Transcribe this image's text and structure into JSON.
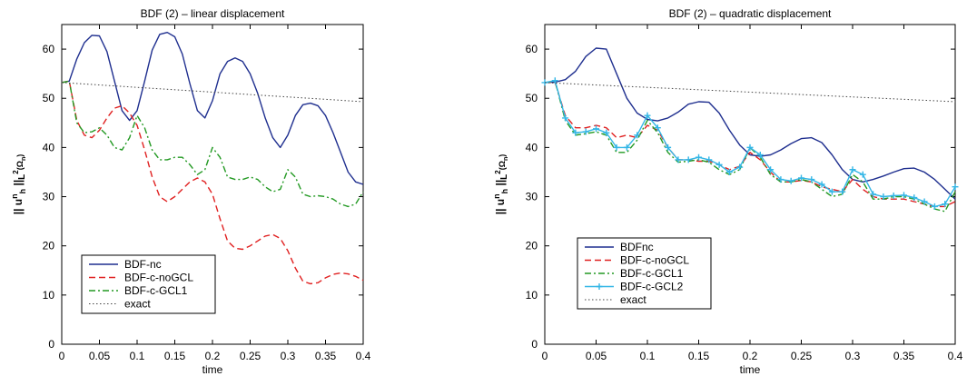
{
  "chart_data": [
    {
      "type": "line",
      "title": "BDF (2)  –  linear displacement",
      "xlabel": "time",
      "ylabel": "|| u_h^n ||_L^2(Ω_n)",
      "xlim": [
        0,
        0.4
      ],
      "ylim": [
        0,
        65
      ],
      "xticks": [
        "0",
        "0.05",
        "0.1",
        "0.15",
        "0.2",
        "0.25",
        "0.3",
        "0.35",
        "0.4"
      ],
      "yticks": [
        "0",
        "10",
        "20",
        "30",
        "40",
        "50",
        "60"
      ],
      "grid": false,
      "legend_position": "bottom-left",
      "series": [
        {
          "name": "BDF-nc",
          "color": "#1f2f8f",
          "dash": "solid",
          "x": [
            0,
            0.01,
            0.02,
            0.03,
            0.04,
            0.05,
            0.06,
            0.07,
            0.08,
            0.09,
            0.1,
            0.11,
            0.12,
            0.13,
            0.14,
            0.15,
            0.16,
            0.17,
            0.18,
            0.19,
            0.2,
            0.21,
            0.22,
            0.23,
            0.24,
            0.25,
            0.26,
            0.27,
            0.28,
            0.29,
            0.3,
            0.31,
            0.32,
            0.33,
            0.34,
            0.35,
            0.36,
            0.37,
            0.38,
            0.39,
            0.4
          ],
          "y": [
            53.2,
            53.5,
            58,
            61.3,
            62.8,
            62.7,
            59.5,
            53.5,
            47.5,
            45.5,
            47.5,
            53.5,
            59.8,
            63,
            63.4,
            62.5,
            59,
            53,
            47.5,
            46,
            49.5,
            55,
            57.5,
            58.2,
            57.5,
            55,
            51,
            46,
            42,
            40,
            42.5,
            46.5,
            48.7,
            49,
            48.5,
            46.5,
            43,
            39,
            35,
            33,
            32.5
          ]
        },
        {
          "name": "BDF-c-noGCL",
          "color": "#e02020",
          "dash": "dashed",
          "x": [
            0,
            0.01,
            0.02,
            0.03,
            0.04,
            0.05,
            0.06,
            0.07,
            0.08,
            0.09,
            0.1,
            0.11,
            0.12,
            0.13,
            0.14,
            0.15,
            0.16,
            0.17,
            0.18,
            0.19,
            0.2,
            0.21,
            0.22,
            0.23,
            0.24,
            0.25,
            0.26,
            0.27,
            0.28,
            0.29,
            0.3,
            0.31,
            0.32,
            0.33,
            0.34,
            0.35,
            0.36,
            0.37,
            0.38,
            0.39,
            0.4
          ],
          "y": [
            53.2,
            53.5,
            45.5,
            42.5,
            42,
            43.5,
            46,
            48,
            48.5,
            47,
            44.5,
            39.5,
            34,
            30,
            29,
            30,
            31.5,
            33,
            33.8,
            33,
            30.5,
            25.5,
            21,
            19.5,
            19.3,
            20,
            21,
            22,
            22.3,
            21.5,
            19,
            15.5,
            12.8,
            12.3,
            12.5,
            13.5,
            14.2,
            14.5,
            14.3,
            13.8,
            13
          ]
        },
        {
          "name": "BDF-c-GCL1",
          "color": "#229922",
          "dash": "dashdot",
          "x": [
            0,
            0.01,
            0.02,
            0.03,
            0.04,
            0.05,
            0.06,
            0.07,
            0.08,
            0.09,
            0.1,
            0.11,
            0.12,
            0.13,
            0.14,
            0.15,
            0.16,
            0.17,
            0.18,
            0.19,
            0.2,
            0.21,
            0.22,
            0.23,
            0.24,
            0.25,
            0.26,
            0.27,
            0.28,
            0.29,
            0.3,
            0.31,
            0.32,
            0.33,
            0.34,
            0.35,
            0.36,
            0.37,
            0.38,
            0.39,
            0.4
          ],
          "y": [
            53.2,
            53.5,
            45,
            43,
            43.2,
            44,
            42.5,
            40,
            39.5,
            42,
            46.5,
            44,
            39.5,
            37.5,
            37.5,
            38,
            38,
            36.5,
            34.5,
            35.5,
            40,
            38,
            34,
            33.5,
            33.5,
            34,
            33.5,
            32,
            31,
            31.5,
            35.5,
            34,
            30.5,
            30,
            30.2,
            30,
            29.5,
            28.5,
            28,
            28.5,
            31
          ]
        },
        {
          "name": "exact",
          "color": "#444444",
          "dash": "dotted",
          "x": [
            0,
            0.4
          ],
          "y": [
            53.2,
            49.3
          ]
        }
      ]
    },
    {
      "type": "line",
      "title": "BDF (2)  –  quadratic displacement",
      "xlabel": "time",
      "ylabel": "|| u_h^n ||_L^2(Ω_n)",
      "xlim": [
        0,
        0.4
      ],
      "ylim": [
        0,
        65
      ],
      "xticks": [
        "0",
        "0.05",
        "0.1",
        "0.15",
        "0.2",
        "0.25",
        "0.3",
        "0.35",
        "0.4"
      ],
      "yticks": [
        "0",
        "10",
        "20",
        "30",
        "40",
        "50",
        "60"
      ],
      "grid": false,
      "legend_position": "bottom-left",
      "series": [
        {
          "name": "BDFnc",
          "color": "#1f2f8f",
          "dash": "solid",
          "x": [
            0,
            0.01,
            0.02,
            0.03,
            0.04,
            0.05,
            0.06,
            0.07,
            0.08,
            0.09,
            0.1,
            0.11,
            0.12,
            0.13,
            0.14,
            0.15,
            0.16,
            0.17,
            0.18,
            0.19,
            0.2,
            0.21,
            0.22,
            0.23,
            0.24,
            0.25,
            0.26,
            0.27,
            0.28,
            0.29,
            0.3,
            0.31,
            0.32,
            0.33,
            0.34,
            0.35,
            0.36,
            0.37,
            0.38,
            0.39,
            0.4
          ],
          "y": [
            53.2,
            53.3,
            53.8,
            55.5,
            58.5,
            60.2,
            60,
            55,
            50,
            47,
            45.7,
            45.4,
            46,
            47.2,
            48.8,
            49.3,
            49.2,
            47,
            43.5,
            40.5,
            38.5,
            38.2,
            38.5,
            39.5,
            40.8,
            41.8,
            42,
            41,
            38.5,
            35.5,
            33.5,
            33,
            33.5,
            34.2,
            35,
            35.7,
            35.8,
            35,
            33.5,
            31.5,
            29.5
          ]
        },
        {
          "name": "BDF-c-noGCL",
          "color": "#e02020",
          "dash": "dashed",
          "x": [
            0,
            0.01,
            0.02,
            0.03,
            0.04,
            0.05,
            0.06,
            0.07,
            0.08,
            0.09,
            0.1,
            0.11,
            0.12,
            0.13,
            0.14,
            0.15,
            0.16,
            0.17,
            0.18,
            0.19,
            0.2,
            0.21,
            0.22,
            0.23,
            0.24,
            0.25,
            0.26,
            0.27,
            0.28,
            0.29,
            0.3,
            0.31,
            0.32,
            0.33,
            0.34,
            0.35,
            0.36,
            0.37,
            0.38,
            0.39,
            0.4
          ],
          "y": [
            53.2,
            53.3,
            46.5,
            44,
            44,
            44.5,
            44,
            42,
            42.5,
            42,
            44.5,
            43.5,
            40,
            37.5,
            37.5,
            37.2,
            37.2,
            36.5,
            35.5,
            36.2,
            39,
            37.5,
            35,
            33,
            33,
            33.3,
            33,
            32,
            31.5,
            31,
            33.5,
            31.5,
            30,
            29.5,
            29.5,
            29.5,
            29,
            28.5,
            28,
            28,
            29
          ]
        },
        {
          "name": "BDF-c-GCL1",
          "color": "#229922",
          "dash": "dashdot",
          "x": [
            0,
            0.01,
            0.02,
            0.03,
            0.04,
            0.05,
            0.06,
            0.07,
            0.08,
            0.09,
            0.1,
            0.11,
            0.12,
            0.13,
            0.14,
            0.15,
            0.16,
            0.17,
            0.18,
            0.19,
            0.2,
            0.21,
            0.22,
            0.23,
            0.24,
            0.25,
            0.26,
            0.27,
            0.28,
            0.29,
            0.3,
            0.31,
            0.32,
            0.33,
            0.34,
            0.35,
            0.36,
            0.37,
            0.38,
            0.39,
            0.4
          ],
          "y": [
            53.2,
            53.5,
            45.5,
            42.5,
            42.8,
            43.2,
            42.5,
            39,
            39,
            41.5,
            45.5,
            43,
            39,
            37,
            37.2,
            37.5,
            37,
            35.5,
            34.5,
            35.5,
            40,
            38,
            34.5,
            33,
            33,
            33.5,
            33,
            31.5,
            30,
            30.5,
            34.5,
            33,
            29.5,
            29.5,
            30,
            30,
            29.5,
            28.5,
            27.5,
            27,
            31
          ]
        },
        {
          "name": "BDF-c-GCL2",
          "color": "#33b6e6",
          "dash": "solid-markers",
          "x": [
            0,
            0.01,
            0.02,
            0.03,
            0.04,
            0.05,
            0.06,
            0.07,
            0.08,
            0.09,
            0.1,
            0.11,
            0.12,
            0.13,
            0.14,
            0.15,
            0.16,
            0.17,
            0.18,
            0.19,
            0.2,
            0.21,
            0.22,
            0.23,
            0.24,
            0.25,
            0.26,
            0.27,
            0.28,
            0.29,
            0.3,
            0.31,
            0.32,
            0.33,
            0.34,
            0.35,
            0.36,
            0.37,
            0.38,
            0.39,
            0.4
          ],
          "y": [
            53.2,
            53.6,
            46,
            43,
            43.2,
            43.8,
            43,
            40,
            40,
            42.5,
            46.5,
            44,
            40,
            37.5,
            37.5,
            38,
            37.5,
            36.5,
            35,
            36,
            40,
            38.5,
            35.5,
            33.5,
            33.2,
            33.8,
            33.5,
            32.5,
            31,
            31,
            35.5,
            34.5,
            30.5,
            30,
            30.2,
            30.3,
            29.8,
            29,
            28,
            28.5,
            32
          ]
        },
        {
          "name": "exact",
          "color": "#444444",
          "dash": "dotted",
          "x": [
            0,
            0.4
          ],
          "y": [
            53.2,
            49.3
          ]
        }
      ]
    }
  ]
}
